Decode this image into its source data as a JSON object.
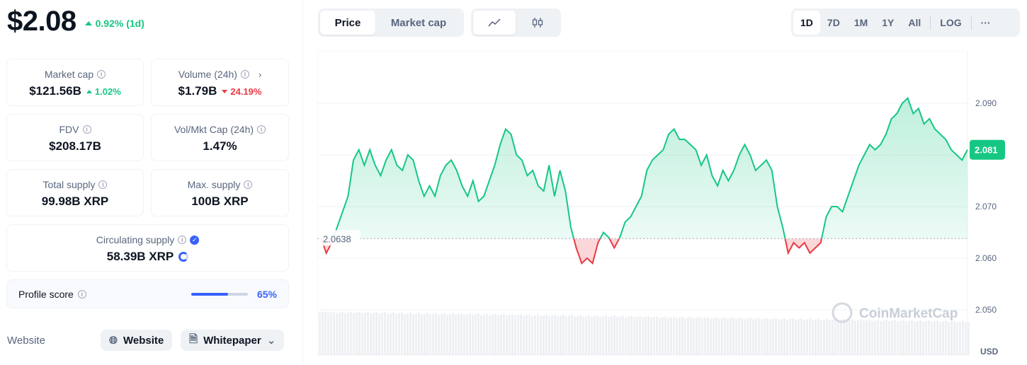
{
  "price": {
    "value": "$2.08",
    "change": "0.92% (1d)"
  },
  "stats": {
    "market_cap": {
      "label": "Market cap",
      "value": "$121.56B",
      "change": "1.02%"
    },
    "volume": {
      "label": "Volume (24h)",
      "value": "$1.79B",
      "change": "24.19%"
    },
    "fdv": {
      "label": "FDV",
      "value": "$208.17B"
    },
    "vol_mkt": {
      "label": "Vol/Mkt Cap (24h)",
      "value": "1.47%"
    },
    "total_supply": {
      "label": "Total supply",
      "value": "99.98B XRP"
    },
    "max_supply": {
      "label": "Max. supply",
      "value": "100B XRP"
    },
    "circulating": {
      "label": "Circulating supply",
      "value": "58.39B XRP"
    }
  },
  "profile": {
    "label": "Profile score",
    "value": "65%",
    "fraction": 0.65
  },
  "links": {
    "label": "Website",
    "website": "Website",
    "whitepaper": "Whitepaper"
  },
  "toolbar": {
    "price_tab": "Price",
    "market_cap_tab": "Market cap",
    "ranges": [
      "1D",
      "7D",
      "1M",
      "1Y",
      "All"
    ],
    "log": "LOG",
    "more": "···"
  },
  "icons": {
    "line": "line-chart-icon",
    "candle": "candlestick-icon",
    "globe": "globe-icon",
    "doc": "document-icon"
  },
  "chart_data": {
    "type": "line",
    "y_ticks": [
      "2.090",
      "2.080",
      "2.070",
      "2.060",
      "2.050"
    ],
    "ylim": [
      2.045,
      2.098
    ],
    "baseline": 2.0638,
    "baseline_label": "2.0638",
    "current_label": "2.081",
    "unit": "USD",
    "watermark": "CoinMarketCap",
    "colors": {
      "up": "#16c784",
      "down": "#ea3943"
    },
    "values": [
      2.064,
      2.061,
      2.063,
      2.066,
      2.069,
      2.072,
      2.079,
      2.081,
      2.078,
      2.081,
      2.078,
      2.076,
      2.079,
      2.081,
      2.078,
      2.077,
      2.08,
      2.079,
      2.075,
      2.072,
      2.074,
      2.072,
      2.076,
      2.078,
      2.079,
      2.077,
      2.074,
      2.072,
      2.075,
      2.071,
      2.072,
      2.075,
      2.078,
      2.082,
      2.085,
      2.084,
      2.08,
      2.079,
      2.076,
      2.077,
      2.074,
      2.073,
      2.078,
      2.072,
      2.077,
      2.073,
      2.066,
      2.062,
      2.059,
      2.06,
      2.059,
      2.063,
      2.065,
      2.064,
      2.062,
      2.064,
      2.067,
      2.068,
      2.07,
      2.072,
      2.077,
      2.079,
      2.08,
      2.081,
      2.084,
      2.085,
      2.083,
      2.083,
      2.082,
      2.081,
      2.078,
      2.08,
      2.076,
      2.074,
      2.077,
      2.075,
      2.077,
      2.08,
      2.082,
      2.08,
      2.077,
      2.078,
      2.079,
      2.077,
      2.07,
      2.066,
      2.061,
      2.063,
      2.062,
      2.063,
      2.061,
      2.062,
      2.063,
      2.068,
      2.07,
      2.07,
      2.069,
      2.072,
      2.075,
      2.078,
      2.08,
      2.082,
      2.081,
      2.082,
      2.084,
      2.087,
      2.088,
      2.09,
      2.091,
      2.088,
      2.089,
      2.086,
      2.087,
      2.085,
      2.084,
      2.083,
      2.081,
      2.08,
      2.079,
      2.081
    ]
  }
}
